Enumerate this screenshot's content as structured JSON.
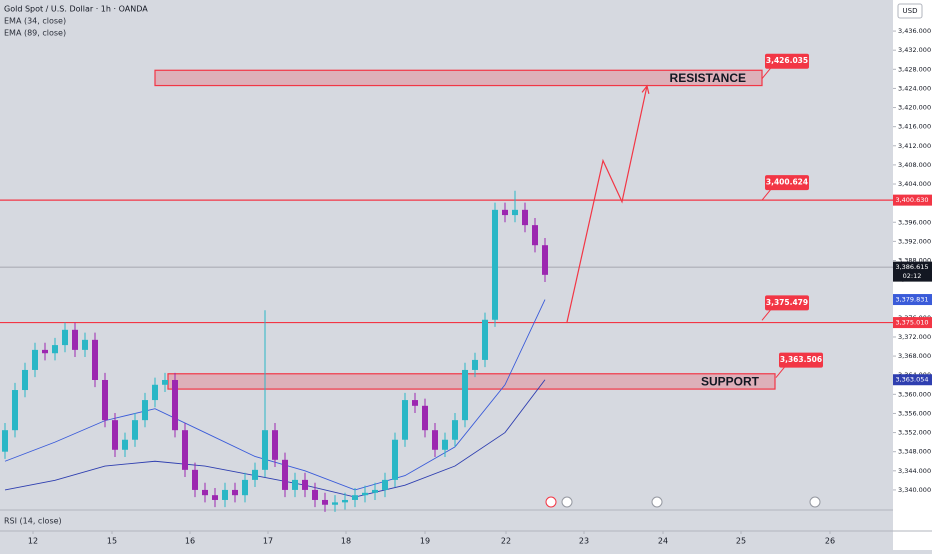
{
  "chart_data": {
    "type": "candlestick",
    "title": "Gold Spot / U.S. Dollar · 1h · OANDA",
    "currency": "USD",
    "indicator": "RSI (14, close)",
    "xlim": [
      -0.5,
      88.8
    ],
    "ylim": [
      3335.8,
      3442.5
    ],
    "grid": false,
    "candles": {
      "up_color": "#2ab7c6",
      "down_color": "#9c27b0",
      "x": [
        0,
        1,
        2,
        3,
        4,
        5,
        6,
        7,
        8,
        9,
        10,
        11,
        12,
        13,
        14,
        15,
        16,
        17,
        18,
        19,
        20,
        21,
        22,
        23,
        24,
        25,
        26,
        27,
        28,
        29,
        30,
        31,
        32,
        33,
        34,
        35,
        36,
        37,
        38,
        39,
        40,
        41,
        42,
        43,
        44,
        45,
        46,
        47,
        48,
        49,
        50,
        51,
        52,
        53,
        54
      ],
      "open": [
        3348,
        3352.5,
        3360.9,
        3365.1,
        3369.3,
        3368.6,
        3370.3,
        3373.5,
        3369.3,
        3371.4,
        3363,
        3354.6,
        3348.4,
        3350.5,
        3354.6,
        3358.8,
        3362,
        3363,
        3352.5,
        3344.2,
        3340,
        3338.9,
        3337.9,
        3340,
        3338.9,
        3342.1,
        3344.2,
        3352.5,
        3346.3,
        3340,
        3342.1,
        3340,
        3337.9,
        3336.9,
        3337.4,
        3337.9,
        3338.9,
        3339.4,
        3340,
        3342.1,
        3350.5,
        3358.8,
        3357.6,
        3352.5,
        3348.4,
        3350.5,
        3354.6,
        3365.1,
        3367.2,
        3375.6,
        3398.6,
        3397.5,
        3398.6,
        3395.4,
        3391.2
      ],
      "high": [
        3354,
        3362.4,
        3366.6,
        3370.8,
        3370.8,
        3371.8,
        3375,
        3375,
        3372.9,
        3372.9,
        3364.5,
        3356.1,
        3352,
        3356.1,
        3360.3,
        3363.5,
        3364.5,
        3364.5,
        3354,
        3345.7,
        3341.5,
        3340.4,
        3341.5,
        3341.5,
        3343.6,
        3345.7,
        3377.6,
        3354,
        3347.8,
        3343.6,
        3343.6,
        3341.5,
        3339.4,
        3338.9,
        3339.4,
        3340.4,
        3340.9,
        3341.5,
        3343.6,
        3352,
        3360.3,
        3360.3,
        3359.1,
        3354,
        3352,
        3356.1,
        3366.6,
        3368.7,
        3377.1,
        3400.1,
        3400.1,
        3402.6,
        3400.1,
        3396.9,
        3392.7
      ],
      "low": [
        3346.5,
        3351,
        3359.4,
        3363.6,
        3367.1,
        3367.1,
        3368.8,
        3367.8,
        3367.8,
        3361.5,
        3353.1,
        3346.9,
        3346.9,
        3349,
        3353.1,
        3357.3,
        3360.5,
        3351,
        3342.7,
        3338.5,
        3337.4,
        3336.4,
        3336.4,
        3337.4,
        3337.4,
        3340.6,
        3342.7,
        3344.8,
        3338.5,
        3338.5,
        3338.5,
        3336.4,
        3335.4,
        3335.4,
        3335.9,
        3336.4,
        3337.4,
        3337.9,
        3338.5,
        3340.6,
        3349,
        3356.1,
        3351,
        3346.9,
        3346.9,
        3349,
        3353.1,
        3363.6,
        3365.7,
        3374.1,
        3396,
        3396,
        3393.9,
        3389.7,
        3383.5
      ],
      "close": [
        3352.5,
        3360.9,
        3365.1,
        3369.3,
        3368.6,
        3370.3,
        3373.5,
        3369.3,
        3371.4,
        3363,
        3354.6,
        3348.4,
        3350.5,
        3354.6,
        3358.8,
        3362,
        3363,
        3352.5,
        3344.2,
        3340,
        3338.9,
        3337.9,
        3340,
        3338.9,
        3342.1,
        3344.2,
        3352.5,
        3346.3,
        3340,
        3342.1,
        3340,
        3337.9,
        3336.9,
        3337.4,
        3337.9,
        3338.9,
        3339.4,
        3340,
        3342.1,
        3350.5,
        3358.8,
        3357.6,
        3352.5,
        3348.4,
        3350.5,
        3354.6,
        3365.1,
        3367.2,
        3375.6,
        3398.6,
        3397.5,
        3398.6,
        3395.4,
        3391.2,
        3385
      ]
    },
    "series": [
      {
        "name": "EMA (34, close)",
        "color": "#3a5bd9",
        "x": [
          0,
          5,
          10,
          15,
          20,
          25,
          30,
          35,
          40,
          45,
          50,
          54
        ],
        "values": [
          3346,
          3350,
          3354.5,
          3357,
          3352,
          3347,
          3344,
          3340,
          3343,
          3349,
          3362,
          3379.831
        ],
        "last_label": "3,379.831"
      },
      {
        "name": "EMA (89, close)",
        "color": "#2f3fb0",
        "x": [
          0,
          5,
          10,
          15,
          20,
          25,
          30,
          35,
          40,
          45,
          50,
          54
        ],
        "values": [
          3340,
          3342,
          3345,
          3346,
          3345,
          3343,
          3341,
          3338.5,
          3341,
          3345,
          3352,
          3363.054
        ],
        "last_label": "3,363.054"
      }
    ],
    "levels": [
      {
        "value": 3400.63,
        "label": "3,400.630",
        "color": "#f23645"
      },
      {
        "value": 3375.01,
        "label": "3,375.010",
        "color": "#f23645"
      }
    ],
    "current_price": {
      "value": 3386.615,
      "label": "3,386.615",
      "countdown": "02:12",
      "color": "#9598a1"
    },
    "zones": [
      {
        "label": "RESISTANCE",
        "x": [
          15,
          75.7
        ],
        "y": [
          3424.6,
          3427.8
        ],
        "color": "#f23645"
      },
      {
        "label": "SUPPORT",
        "x": [
          16.3,
          77
        ],
        "y": [
          3361.1,
          3364.3
        ],
        "color": "#f23645"
      }
    ],
    "callouts": [
      {
        "label": "3,426.035",
        "value": 3426.035,
        "x": 75.7
      },
      {
        "label": "3,400.624",
        "value": 3400.624,
        "x": 75.7
      },
      {
        "label": "3,375.479",
        "value": 3375.479,
        "x": 75.7
      },
      {
        "label": "3,363.506",
        "value": 3363.506,
        "x": 77.1
      }
    ],
    "projection": {
      "color": "#f23645",
      "x": [
        56.2,
        59.8,
        61.7,
        64.2
      ],
      "values": [
        3375.1,
        3408.9,
        3400.3,
        3424.5
      ]
    },
    "yticks": [
      {
        "value": 3340,
        "label": "3,340.000"
      },
      {
        "value": 3344,
        "label": "3,344.000"
      },
      {
        "value": 3348,
        "label": "3,348.000"
      },
      {
        "value": 3352,
        "label": "3,352.000"
      },
      {
        "value": 3356,
        "label": "3,356.000"
      },
      {
        "value": 3360,
        "label": "3,360.000"
      },
      {
        "value": 3364,
        "label": "3,364.000"
      },
      {
        "value": 3368,
        "label": "3,368.000"
      },
      {
        "value": 3372,
        "label": "3,372.000"
      },
      {
        "value": 3376,
        "label": "3,376.000"
      },
      {
        "value": 3380,
        "label": "3,380.000"
      },
      {
        "value": 3384,
        "label": "3,384.000"
      },
      {
        "value": 3388,
        "label": "3,388.000"
      },
      {
        "value": 3392,
        "label": "3,392.000"
      },
      {
        "value": 3396,
        "label": "3,396.000"
      },
      {
        "value": 3400,
        "label": "3,400.000"
      },
      {
        "value": 3404,
        "label": "3,404.000"
      },
      {
        "value": 3408,
        "label": "3,408.000"
      },
      {
        "value": 3412,
        "label": "3,412.000"
      },
      {
        "value": 3416,
        "label": "3,416.000"
      },
      {
        "value": 3420,
        "label": "3,420.000"
      },
      {
        "value": 3424,
        "label": "3,424.000"
      },
      {
        "value": 3428,
        "label": "3,428.000"
      },
      {
        "value": 3432,
        "label": "3,432.000"
      },
      {
        "value": 3436,
        "label": "3,436.000"
      }
    ],
    "xticks": [
      {
        "value": 2.8,
        "label": "12"
      },
      {
        "value": 10.7,
        "label": "15"
      },
      {
        "value": 18.5,
        "label": "16"
      },
      {
        "value": 26.3,
        "label": "17"
      },
      {
        "value": 34.1,
        "label": "18"
      },
      {
        "value": 42,
        "label": "19"
      },
      {
        "value": 50.1,
        "label": "22"
      },
      {
        "value": 57.9,
        "label": "23"
      },
      {
        "value": 65.8,
        "label": "24"
      },
      {
        "value": 73.6,
        "label": "25"
      },
      {
        "value": 82.5,
        "label": "26"
      }
    ]
  }
}
